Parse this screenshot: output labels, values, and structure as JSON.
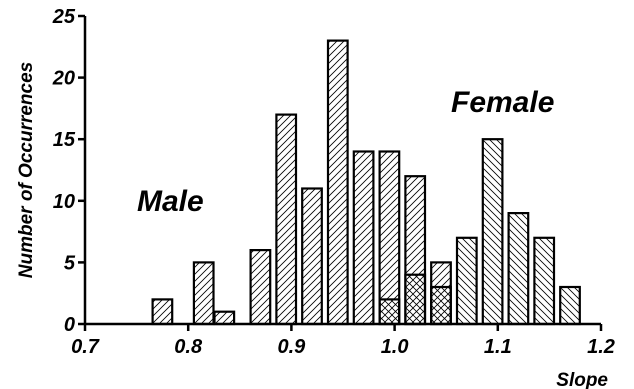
{
  "chart_data": {
    "type": "bar",
    "xlabel": "Slope",
    "ylabel": "Number of Occurrences",
    "xlim": [
      0.7,
      1.2
    ],
    "ylim": [
      0,
      25
    ],
    "x_ticks": [
      "0.7",
      "0.8",
      "0.9",
      "1.0",
      "1.1",
      "1.2"
    ],
    "y_ticks": [
      "0",
      "5",
      "10",
      "15",
      "20",
      "25"
    ],
    "bin_width": 0.019,
    "annotations": [
      "Male",
      "Female"
    ],
    "grid": false,
    "series": [
      {
        "name": "Male",
        "hatch": "forward-diagonal",
        "x": [
          0.775,
          0.815,
          0.835,
          0.87,
          0.895,
          0.92,
          0.945,
          0.97,
          0.995,
          1.02,
          1.045
        ],
        "values": [
          2,
          5,
          1,
          6,
          17,
          11,
          23,
          14,
          14,
          12,
          5
        ]
      },
      {
        "name": "Female",
        "hatch": "backward-diagonal",
        "x": [
          0.995,
          1.02,
          1.045,
          1.07,
          1.095,
          1.12,
          1.145,
          1.17
        ],
        "values": [
          2,
          4,
          3,
          7,
          15,
          9,
          7,
          3
        ]
      }
    ]
  }
}
